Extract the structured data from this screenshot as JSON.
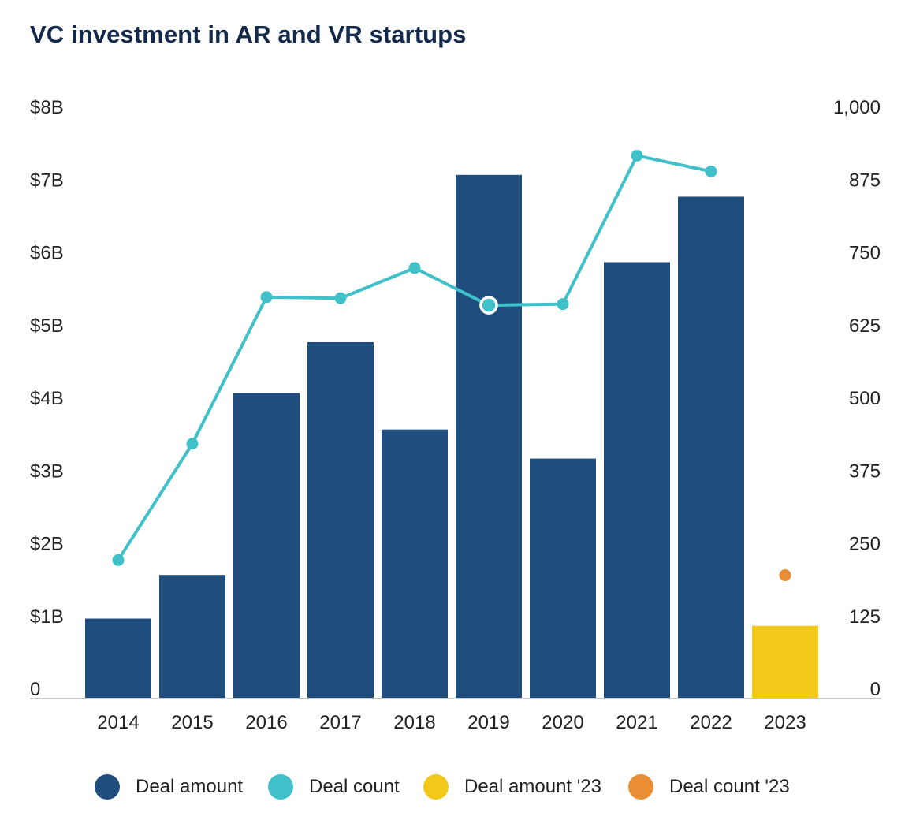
{
  "title": "VC investment in AR and VR startups",
  "chart_data": {
    "type": "bar",
    "title": "VC investment in AR and VR startups",
    "categories": [
      "2014",
      "2015",
      "2016",
      "2017",
      "2018",
      "2019",
      "2020",
      "2021",
      "2022",
      "2023"
    ],
    "series": [
      {
        "name": "Deal amount",
        "type": "bar",
        "axis": "left",
        "color": "#1f4e7e",
        "values": [
          1.1,
          1.7,
          4.2,
          4.9,
          3.7,
          7.2,
          3.3,
          6.0,
          6.9,
          null
        ]
      },
      {
        "name": "Deal count",
        "type": "line",
        "axis": "right",
        "color": "#40c1ca",
        "values": [
          238,
          438,
          690,
          688,
          740,
          676,
          678,
          933,
          906,
          null
        ]
      },
      {
        "name": "Deal amount '23",
        "type": "bar",
        "axis": "left",
        "color": "#f2c918",
        "values": [
          null,
          null,
          null,
          null,
          null,
          null,
          null,
          null,
          null,
          1.0
        ]
      },
      {
        "name": "Deal count '23",
        "type": "point",
        "axis": "right",
        "color": "#e98e35",
        "values": [
          null,
          null,
          null,
          null,
          null,
          null,
          null,
          null,
          null,
          212
        ]
      }
    ],
    "y_left": {
      "ylim": [
        0,
        8
      ],
      "ticks": [
        0,
        1,
        2,
        3,
        4,
        5,
        6,
        7,
        8
      ],
      "tick_labels": [
        "0",
        "$1B",
        "$2B",
        "$3B",
        "$4B",
        "$5B",
        "$6B",
        "$7B",
        "$8B"
      ]
    },
    "y_right": {
      "ylim": [
        0,
        1000
      ],
      "ticks": [
        0,
        125,
        250,
        375,
        500,
        625,
        750,
        875,
        1000
      ],
      "tick_labels": [
        "0",
        "125",
        "250",
        "375",
        "500",
        "625",
        "750",
        "875",
        "1,000"
      ]
    },
    "highlighted_point": {
      "series": "Deal count",
      "category": "2019"
    },
    "grid": false,
    "legend_position": "bottom"
  },
  "legend": [
    {
      "label": "Deal amount",
      "color": "#1f4e7e"
    },
    {
      "label": "Deal count",
      "color": "#40c1ca"
    },
    {
      "label": "Deal amount '23",
      "color": "#f2c918"
    },
    {
      "label": "Deal count '23",
      "color": "#e98e35"
    }
  ]
}
